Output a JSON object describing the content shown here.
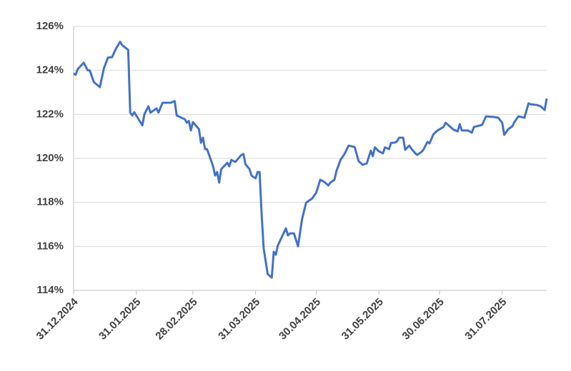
{
  "chart_data": {
    "type": "line",
    "color": "#4472c4",
    "grid": true,
    "ylim": [
      114,
      126
    ],
    "yticks": [
      {
        "value": 114,
        "label": "114%"
      },
      {
        "value": 116,
        "label": "116%"
      },
      {
        "value": 118,
        "label": "118%"
      },
      {
        "value": 120,
        "label": "120%"
      },
      {
        "value": 122,
        "label": "122%"
      },
      {
        "value": 124,
        "label": "124%"
      },
      {
        "value": 126,
        "label": "126%"
      }
    ],
    "xlim": [
      "2024-12-31",
      "2025-08-22"
    ],
    "xticks": [
      {
        "value": "2024-12-31",
        "label": "31.12.2024"
      },
      {
        "value": "2025-01-31",
        "label": "31.01.2025"
      },
      {
        "value": "2025-02-28",
        "label": "28.02.2025"
      },
      {
        "value": "2025-03-31",
        "label": "31.03.2025"
      },
      {
        "value": "2025-04-30",
        "label": "30.04.2025"
      },
      {
        "value": "2025-05-31",
        "label": "31.05.2025"
      },
      {
        "value": "2025-06-30",
        "label": "30.06.2025"
      },
      {
        "value": "2025-07-31",
        "label": "31.07.2025"
      }
    ],
    "x": [
      "2024-12-31",
      "2025-01-01",
      "2025-01-02",
      "2025-01-05",
      "2025-01-07",
      "2025-01-08",
      "2025-01-10",
      "2025-01-13",
      "2025-01-15",
      "2025-01-17",
      "2025-01-19",
      "2025-01-21",
      "2025-01-23",
      "2025-01-24",
      "2025-01-27",
      "2025-01-28",
      "2025-01-29",
      "2025-01-30",
      "2025-02-03",
      "2025-02-04",
      "2025-02-06",
      "2025-02-07",
      "2025-02-10",
      "2025-02-11",
      "2025-02-13",
      "2025-02-17",
      "2025-02-19",
      "2025-02-20",
      "2025-02-24",
      "2025-02-25",
      "2025-02-26",
      "2025-02-27",
      "2025-02-28",
      "2025-03-03",
      "2025-03-04",
      "2025-03-05",
      "2025-03-06",
      "2025-03-07",
      "2025-03-10",
      "2025-03-11",
      "2025-03-12",
      "2025-03-13",
      "2025-03-14",
      "2025-03-17",
      "2025-03-18",
      "2025-03-19",
      "2025-03-21",
      "2025-03-24",
      "2025-03-25",
      "2025-03-26",
      "2025-03-28",
      "2025-03-29",
      "2025-03-31",
      "2025-04-01",
      "2025-04-02",
      "2025-04-03",
      "2025-04-04",
      "2025-04-06",
      "2025-04-08",
      "2025-04-09",
      "2025-04-10",
      "2025-04-11",
      "2025-04-15",
      "2025-04-16",
      "2025-04-17",
      "2025-04-19",
      "2025-04-21",
      "2025-04-23",
      "2025-04-25",
      "2025-04-28",
      "2025-04-30",
      "2025-05-02",
      "2025-05-04",
      "2025-05-06",
      "2025-05-07",
      "2025-05-09",
      "2025-05-10",
      "2025-05-12",
      "2025-05-14",
      "2025-05-16",
      "2025-05-19",
      "2025-05-21",
      "2025-05-23",
      "2025-05-25",
      "2025-05-27",
      "2025-05-28",
      "2025-05-29",
      "2025-05-31",
      "2025-06-02",
      "2025-06-03",
      "2025-06-05",
      "2025-06-06",
      "2025-06-08",
      "2025-06-09",
      "2025-06-10",
      "2025-06-12",
      "2025-06-13",
      "2025-06-15",
      "2025-06-16",
      "2025-06-18",
      "2025-06-19",
      "2025-06-21",
      "2025-06-22",
      "2025-06-24",
      "2025-06-25",
      "2025-06-27",
      "2025-06-29",
      "2025-07-02",
      "2025-07-03",
      "2025-07-05",
      "2025-07-07",
      "2025-07-09",
      "2025-07-10",
      "2025-07-11",
      "2025-07-14",
      "2025-07-16",
      "2025-07-17",
      "2025-07-21",
      "2025-07-23",
      "2025-07-27",
      "2025-07-29",
      "2025-07-31",
      "2025-08-01",
      "2025-08-03",
      "2025-08-05",
      "2025-08-06",
      "2025-08-08",
      "2025-08-11",
      "2025-08-13",
      "2025-08-14",
      "2025-08-17",
      "2025-08-19",
      "2025-08-21",
      "2025-08-22"
    ],
    "values": [
      123.86,
      123.8,
      124.05,
      124.35,
      124.0,
      124.0,
      123.47,
      123.24,
      124.1,
      124.58,
      124.6,
      125.0,
      125.3,
      125.15,
      124.93,
      122.08,
      121.95,
      122.1,
      121.5,
      122.0,
      122.37,
      122.08,
      122.27,
      122.08,
      122.53,
      122.53,
      122.6,
      121.95,
      121.78,
      121.62,
      121.7,
      121.27,
      121.65,
      121.33,
      120.71,
      120.94,
      120.42,
      120.42,
      119.64,
      119.22,
      119.38,
      118.9,
      119.51,
      119.8,
      119.64,
      119.93,
      119.84,
      120.16,
      120.2,
      119.74,
      119.51,
      119.22,
      119.09,
      119.38,
      119.38,
      117.47,
      115.91,
      114.74,
      114.58,
      115.75,
      115.62,
      116.04,
      116.82,
      116.5,
      116.59,
      116.59,
      116.0,
      117.24,
      117.99,
      118.18,
      118.44,
      119.03,
      118.93,
      118.77,
      118.9,
      119.03,
      119.42,
      119.93,
      120.2,
      120.58,
      120.52,
      119.87,
      119.71,
      119.77,
      120.35,
      120.1,
      120.5,
      120.32,
      120.23,
      120.5,
      120.42,
      120.7,
      120.72,
      120.78,
      120.94,
      120.94,
      120.39,
      120.58,
      120.45,
      120.23,
      120.16,
      120.29,
      120.39,
      120.75,
      120.68,
      121.1,
      121.27,
      121.43,
      121.62,
      121.46,
      121.3,
      121.23,
      121.56,
      121.27,
      121.27,
      121.17,
      121.43,
      121.52,
      121.91,
      121.88,
      121.85,
      121.62,
      121.07,
      121.33,
      121.46,
      121.65,
      121.91,
      121.85,
      122.5,
      122.46,
      122.43,
      122.37,
      122.2,
      122.72
    ]
  }
}
